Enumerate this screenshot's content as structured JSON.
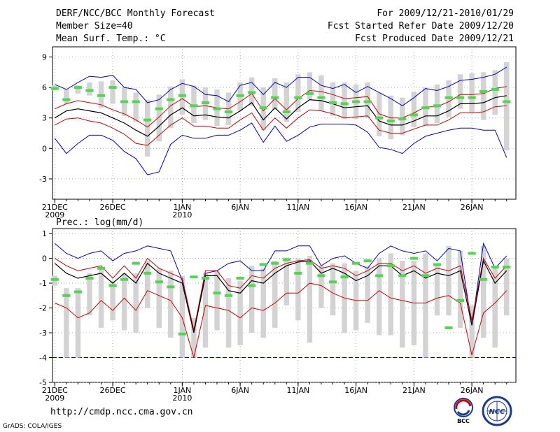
{
  "header": {
    "title": "DERF/NCC/BCC Monthly Forecast",
    "member_size": "Member Size=40",
    "variable": "Mean Surf. Temp.: °C",
    "period": "For 2009/12/21-2010/01/29",
    "fcst_started": "Fcst Started Refer Date 2009/12/20",
    "fcst_produced": "Fcst Produced Date 2009/12/21"
  },
  "footer": {
    "url": "http://cmdp.ncc.cma.gov.cn",
    "credit": "GrADS: COLA/IGES",
    "logo_bcc": "BCC",
    "logo_ncc": "NCC"
  },
  "colors": {
    "ensemble_bar": "#d3d3d3",
    "observed_marker": "#4cd94c",
    "mean_line": "#000000",
    "inner_band": "#cc0000",
    "outer_band": "#0000cc",
    "threshold_line": "#0000cc"
  },
  "chart_data": [
    {
      "type": "line",
      "title": "Mean Surf. Temp.: °C",
      "x": [
        1,
        2,
        3,
        4,
        5,
        6,
        7,
        8,
        9,
        10,
        11,
        12,
        13,
        14,
        15,
        16,
        17,
        18,
        19,
        20,
        21,
        22,
        23,
        24,
        25,
        26,
        27,
        28,
        29,
        30,
        31,
        32,
        33,
        34,
        35,
        36,
        37,
        38,
        39,
        40
      ],
      "x_ticks": [
        "21DEC",
        "26DEC",
        "1JAN",
        "6JAN",
        "11JAN",
        "16JAN",
        "21JAN",
        "26JAN"
      ],
      "x_tick_positions": [
        1,
        6,
        12,
        17,
        22,
        27,
        32,
        37
      ],
      "x_subticks": [
        "2009",
        "",
        "2010",
        "",
        "",
        "",
        "",
        ""
      ],
      "xlim": [
        0.8,
        40.8
      ],
      "ylim": [
        -5,
        10
      ],
      "yticks": [
        -3,
        0,
        3,
        6,
        9
      ],
      "series": [
        {
          "name": "mean",
          "values": [
            3.0,
            3.7,
            3.9,
            3.7,
            3.5,
            3.0,
            2.5,
            1.8,
            1.2,
            2.2,
            3.3,
            4.0,
            3.2,
            3.3,
            3.1,
            3.0,
            3.7,
            4.5,
            2.8,
            4.0,
            2.9,
            4.0,
            4.8,
            4.7,
            4.4,
            4.0,
            4.1,
            4.2,
            2.7,
            2.3,
            2.3,
            2.7,
            3.2,
            3.2,
            3.7,
            4.4,
            4.4,
            4.5,
            5.0,
            5.2
          ]
        },
        {
          "name": "upper_red",
          "values": [
            3.9,
            4.4,
            4.7,
            4.5,
            4.3,
            3.8,
            3.4,
            2.8,
            2.1,
            3.1,
            4.2,
            4.9,
            4.1,
            4.2,
            4.0,
            3.9,
            4.6,
            5.4,
            3.7,
            4.9,
            3.8,
            4.9,
            5.7,
            5.6,
            5.3,
            4.9,
            5.0,
            5.1,
            3.4,
            3.0,
            3.0,
            3.5,
            4.1,
            4.1,
            4.6,
            5.3,
            5.3,
            5.4,
            5.9,
            6.1
          ]
        },
        {
          "name": "lower_red",
          "values": [
            2.3,
            2.9,
            3.0,
            2.7,
            2.5,
            2.0,
            1.4,
            0.5,
            0.3,
            1.3,
            2.3,
            3.0,
            2.2,
            2.2,
            2.0,
            2.0,
            2.8,
            3.5,
            1.8,
            3.0,
            2.0,
            3.0,
            3.8,
            3.7,
            3.4,
            3.0,
            3.1,
            3.2,
            1.8,
            1.5,
            1.5,
            1.9,
            2.3,
            2.3,
            2.8,
            3.5,
            3.5,
            3.6,
            4.1,
            4.2
          ]
        },
        {
          "name": "upper_blue",
          "values": [
            6.3,
            5.8,
            6.5,
            7.1,
            7.0,
            7.2,
            6.0,
            5.8,
            4.5,
            4.8,
            5.8,
            6.4,
            6.1,
            5.3,
            5.2,
            4.6,
            6.2,
            6.5,
            5.3,
            6.5,
            6.0,
            7.0,
            7.0,
            6.2,
            5.9,
            6.3,
            5.5,
            6.1,
            5.5,
            4.9,
            4.2,
            5.0,
            5.9,
            5.7,
            6.1,
            6.7,
            6.8,
            7.0,
            7.3,
            8.0
          ]
        },
        {
          "name": "lower_blue",
          "values": [
            1.0,
            -0.5,
            0.5,
            1.3,
            1.3,
            0.8,
            -0.3,
            -1.0,
            -2.6,
            -2.3,
            0.4,
            1.3,
            1.0,
            1.0,
            1.3,
            1.3,
            1.8,
            2.5,
            0.6,
            2.2,
            0.7,
            1.3,
            2.1,
            2.4,
            2.4,
            2.4,
            2.3,
            1.6,
            0.1,
            -0.1,
            -0.5,
            0.5,
            1.2,
            1.5,
            1.8,
            2.0,
            2.0,
            1.8,
            1.8,
            -0.9
          ]
        },
        {
          "name": "ensemble_max",
          "values": [
            6.2,
            5.8,
            6.2,
            6.5,
            6.6,
            6.7,
            6.0,
            5.5,
            4.8,
            5.3,
            6.1,
            6.8,
            6.2,
            6.0,
            5.8,
            5.5,
            6.5,
            7.0,
            6.0,
            6.9,
            6.5,
            7.3,
            7.5,
            7.2,
            6.5,
            6.5,
            6.3,
            6.5,
            5.5,
            5.2,
            5.0,
            5.6,
            6.0,
            6.3,
            6.7,
            7.3,
            7.4,
            7.5,
            7.7,
            8.5
          ]
        },
        {
          "name": "ensemble_min",
          "values": [
            5.7,
            4.4,
            5.4,
            5.2,
            4.0,
            4.4,
            3.2,
            2.6,
            -0.8,
            0.7,
            2.0,
            3.3,
            2.5,
            2.8,
            2.2,
            2.3,
            3.7,
            4.2,
            1.8,
            3.8,
            2.6,
            3.6,
            4.8,
            3.7,
            3.2,
            2.9,
            2.9,
            3.0,
            1.2,
            0.9,
            1.3,
            2.1,
            2.2,
            2.5,
            3.1,
            3.9,
            3.5,
            2.8,
            3.3,
            -0.2
          ]
        },
        {
          "name": "observed",
          "values": [
            5.9,
            4.8,
            6.0,
            5.7,
            5.2,
            6.0,
            4.6,
            4.6,
            2.8,
            3.9,
            4.8,
            5.2,
            4.2,
            4.5,
            3.9,
            3.6,
            5.2,
            5.5,
            4.0,
            5.0,
            3.6,
            5.0,
            5.4,
            5.0,
            4.5,
            4.4,
            4.6,
            4.6,
            3.0,
            2.7,
            2.9,
            3.3,
            4.0,
            4.2,
            5.0,
            5.0,
            5.0,
            5.6,
            5.8,
            4.6
          ]
        }
      ]
    },
    {
      "type": "line",
      "title": "Prec.: log(mm/d)",
      "x": [
        1,
        2,
        3,
        4,
        5,
        6,
        7,
        8,
        9,
        10,
        11,
        12,
        13,
        14,
        15,
        16,
        17,
        18,
        19,
        20,
        21,
        22,
        23,
        24,
        25,
        26,
        27,
        28,
        29,
        30,
        31,
        32,
        33,
        34,
        35,
        36,
        37,
        38,
        39,
        40
      ],
      "x_ticks": [
        "21DEC",
        "26DEC",
        "1JAN",
        "6JAN",
        "11JAN",
        "16JAN",
        "21JAN",
        "26JAN"
      ],
      "x_tick_positions": [
        1,
        6,
        12,
        17,
        22,
        27,
        32,
        37
      ],
      "x_subticks": [
        "2009",
        "",
        "2010",
        "",
        "",
        "",
        "",
        ""
      ],
      "xlim": [
        0.8,
        40.8
      ],
      "ylim": [
        -5,
        1.2
      ],
      "yticks": [
        -5,
        -4,
        -3,
        -2,
        -1,
        0,
        1
      ],
      "threshold": -4,
      "series": [
        {
          "name": "mean",
          "values": [
            -0.2,
            -0.6,
            -0.8,
            -0.7,
            -0.6,
            -1.0,
            -0.6,
            -1.0,
            -0.2,
            -0.6,
            -0.8,
            -1.0,
            -3.0,
            -0.7,
            -0.7,
            -1.3,
            -1.4,
            -0.9,
            -1.0,
            -0.6,
            -0.3,
            -0.15,
            -0.1,
            -0.6,
            -0.4,
            -0.6,
            -0.9,
            -0.7,
            -0.3,
            -0.3,
            -0.7,
            -0.5,
            -0.8,
            -0.6,
            -0.7,
            -0.5,
            -2.7,
            -0.1,
            -1.0,
            -0.5
          ]
        },
        {
          "name": "upper_red",
          "values": [
            0.0,
            -0.3,
            -0.5,
            -0.4,
            -0.3,
            -0.8,
            -0.3,
            -0.8,
            0.0,
            -0.4,
            -0.6,
            -0.8,
            -2.9,
            -0.5,
            -0.5,
            -1.1,
            -1.2,
            -0.7,
            -0.8,
            -0.4,
            -0.2,
            -0.1,
            -0.05,
            -0.4,
            -0.3,
            -0.4,
            -0.7,
            -0.5,
            -0.2,
            -0.2,
            -0.5,
            -0.3,
            -0.6,
            -0.4,
            -0.5,
            -0.3,
            -2.5,
            0.0,
            -0.8,
            -0.3
          ]
        },
        {
          "name": "lower_red",
          "values": [
            -1.8,
            -2.0,
            -2.4,
            -2.2,
            -1.7,
            -2.1,
            -1.6,
            -2.1,
            -1.3,
            -1.5,
            -1.7,
            -2.4,
            -4.0,
            -1.9,
            -2.0,
            -2.1,
            -2.4,
            -2.0,
            -2.1,
            -1.8,
            -1.4,
            -1.4,
            -1.0,
            -1.1,
            -1.4,
            -1.6,
            -1.7,
            -1.7,
            -1.3,
            -1.6,
            -1.7,
            -1.8,
            -1.8,
            -1.6,
            -1.5,
            -1.8,
            -3.9,
            -2.2,
            -1.8,
            -1.3
          ]
        },
        {
          "name": "upper_blue",
          "values": [
            0.6,
            0.2,
            0.0,
            0.2,
            0.3,
            -0.1,
            0.2,
            0.3,
            0.5,
            0.4,
            0.3,
            -0.9,
            -2.9,
            -0.6,
            -0.5,
            -0.2,
            -0.1,
            -0.5,
            -0.5,
            0.3,
            0.3,
            0.5,
            0.5,
            -0.3,
            0.0,
            0.1,
            -0.2,
            -0.4,
            0.2,
            0.5,
            0.3,
            0.2,
            0.3,
            -0.1,
            0.4,
            0.3,
            -2.7,
            0.6,
            -0.4,
            0.1
          ]
        },
        {
          "name": "ensemble_max",
          "values": [
            -0.7,
            -1.2,
            -1.2,
            -0.6,
            -0.4,
            -0.9,
            -0.6,
            -0.6,
            -0.1,
            -0.4,
            -0.5,
            -0.7,
            -2.4,
            -0.6,
            -0.5,
            -0.8,
            -0.9,
            -0.3,
            -0.4,
            -0.1,
            -0.1,
            0.0,
            0.1,
            -0.3,
            -0.2,
            -0.2,
            -0.5,
            -0.3,
            0.0,
            0.2,
            -0.1,
            -0.1,
            0.2,
            -0.3,
            0.5,
            0.3,
            -1.9,
            0.5,
            -0.4,
            0.0
          ]
        },
        {
          "name": "ensemble_min",
          "values": [
            -1.1,
            -4.0,
            -4.0,
            -2.3,
            -2.8,
            -2.5,
            -2.9,
            -3.0,
            -2.0,
            -2.8,
            -3.2,
            -4.0,
            -4.0,
            -3.6,
            -2.9,
            -3.6,
            -3.5,
            -3.0,
            -3.2,
            -2.8,
            -1.9,
            -2.5,
            -3.4,
            -2.0,
            -2.3,
            -3.0,
            -2.9,
            -2.6,
            -3.1,
            -3.1,
            -3.6,
            -3.5,
            -4.0,
            -2.3,
            -2.3,
            -2.8,
            -4.0,
            -3.2,
            -3.6,
            -2.3
          ]
        },
        {
          "name": "observed",
          "values": [
            -0.85,
            -1.5,
            -1.35,
            -0.8,
            -0.4,
            -1.1,
            -0.85,
            -0.2,
            -0.6,
            -0.95,
            -1.15,
            -3.05,
            -0.75,
            -0.8,
            -1.4,
            -1.5,
            -0.8,
            -1.1,
            -0.25,
            -0.2,
            -0.05,
            -0.6,
            -0.2,
            -0.7,
            -0.95,
            -0.75,
            -0.2,
            -0.1,
            -0.7,
            -0.3,
            -0.7,
            0.0,
            -0.7,
            -0.25,
            -2.8,
            -1.7,
            0.2,
            -0.85,
            -0.35,
            -0.35
          ]
        }
      ]
    }
  ]
}
